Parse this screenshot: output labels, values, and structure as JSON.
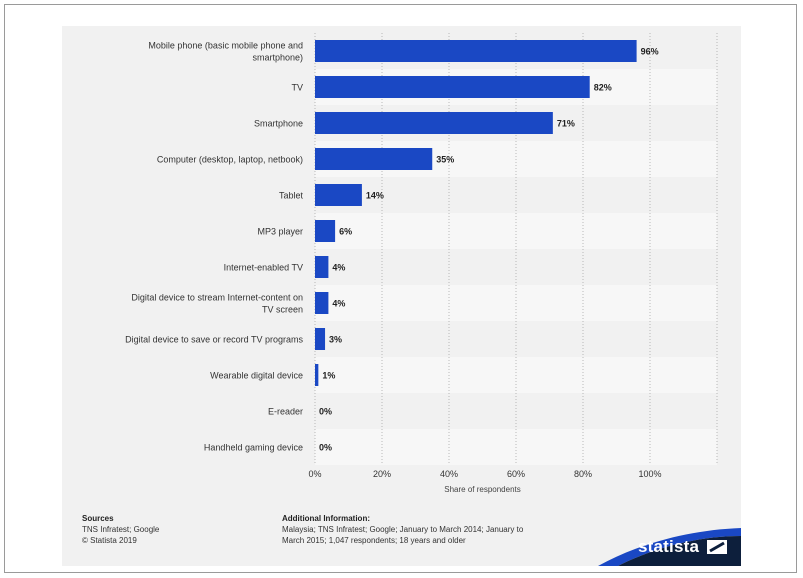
{
  "chart_data": {
    "type": "bar",
    "orientation": "horizontal",
    "categories": [
      "Mobile phone (basic mobile phone and smartphone)",
      "TV",
      "Smartphone",
      "Computer (desktop, laptop, netbook)",
      "Tablet",
      "MP3 player",
      "Internet-enabled TV",
      "Digital device to stream Internet-content on TV screen",
      "Digital device to save or record TV programs",
      "Wearable digital device",
      "E-reader",
      "Handheld gaming device"
    ],
    "category_lines": [
      [
        "Mobile phone (basic mobile phone and",
        "smartphone)"
      ],
      [
        "TV"
      ],
      [
        "Smartphone"
      ],
      [
        "Computer (desktop, laptop, netbook)"
      ],
      [
        "Tablet"
      ],
      [
        "MP3 player"
      ],
      [
        "Internet-enabled TV"
      ],
      [
        "Digital device to stream Internet-content on",
        "TV screen"
      ],
      [
        "Digital device to save or record TV programs"
      ],
      [
        "Wearable digital device"
      ],
      [
        "E-reader"
      ],
      [
        "Handheld gaming device"
      ]
    ],
    "values": [
      96,
      82,
      71,
      35,
      14,
      6,
      4,
      4,
      3,
      1,
      0,
      0
    ],
    "value_labels": [
      "96%",
      "82%",
      "71%",
      "35%",
      "14%",
      "6%",
      "4%",
      "4%",
      "3%",
      "1%",
      "0%",
      "0%"
    ],
    "xlim": [
      0,
      120
    ],
    "xticks": [
      0,
      20,
      40,
      60,
      80,
      100,
      120
    ],
    "xtick_labels": [
      "0%",
      "20%",
      "40%",
      "60%",
      "80%",
      "100%",
      ""
    ],
    "xlabel": "Share of respondents",
    "ylabel": "",
    "grid": true,
    "bar_color": "#1a48c4"
  },
  "footer": {
    "sources_heading": "Sources",
    "sources_line1": "TNS Infratest; Google",
    "sources_line2": "© Statista 2019",
    "info_heading": "Additional Information:",
    "info_line1": "Malaysia; TNS Infratest; Google; January to March 2014; January to",
    "info_line2": "March 2015; 1,047 respondents; 18 years and older"
  },
  "brand": {
    "name": "statista",
    "band_color": "#0d1f3c",
    "accent_color": "#1a48c4"
  }
}
